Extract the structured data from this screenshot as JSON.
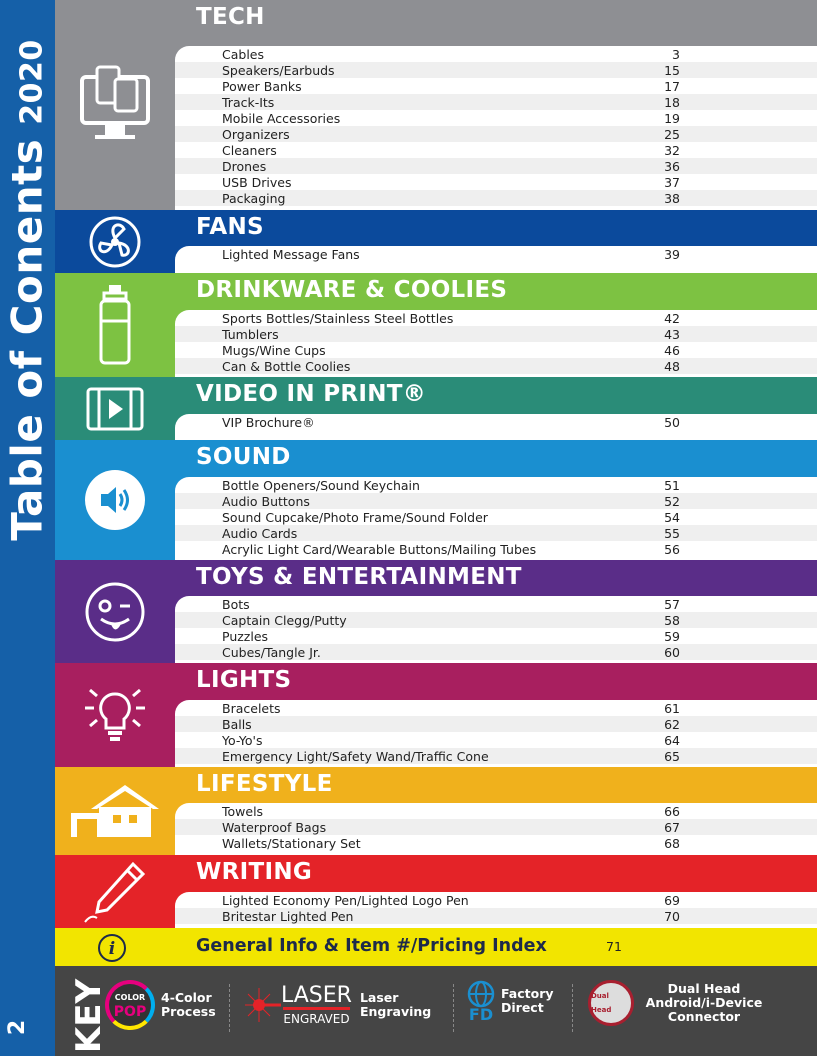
{
  "sidebar": {
    "title": "Table of Conents",
    "year": "2020",
    "page_number": "2"
  },
  "sections": [
    {
      "title": "TECH",
      "color": "#8e8f93",
      "icon": "computer-devices-icon",
      "items": [
        [
          "Cables",
          "3"
        ],
        [
          "Speakers/Earbuds",
          "15"
        ],
        [
          "Power Banks",
          "17"
        ],
        [
          "Track-Its",
          "18"
        ],
        [
          "Mobile Accessories",
          "19"
        ],
        [
          "Organizers",
          "25"
        ],
        [
          "Cleaners",
          "32"
        ],
        [
          "Drones",
          "36"
        ],
        [
          "USB Drives",
          "37"
        ],
        [
          "Packaging",
          "38"
        ]
      ]
    },
    {
      "title": "FANS",
      "color": "#0b4a9c",
      "icon": "fan-icon",
      "items": [
        [
          "Lighted Message Fans",
          "39"
        ]
      ]
    },
    {
      "title": "DRINKWARE & COOLIES",
      "color": "#7dc242",
      "icon": "water-bottle-icon",
      "items": [
        [
          "Sports Bottles/Stainless Steel Bottles",
          "42"
        ],
        [
          "Tumblers",
          "43"
        ],
        [
          "Mugs/Wine Cups",
          "46"
        ],
        [
          "Can & Bottle Coolies",
          "48"
        ]
      ]
    },
    {
      "title": "VIDEO IN PRINT®",
      "color": "#2a8c78",
      "icon": "video-film-icon",
      "items": [
        [
          "VIP Brochure®",
          "50"
        ]
      ]
    },
    {
      "title": "SOUND",
      "color": "#1a8fd0",
      "icon": "speaker-icon",
      "items": [
        [
          "Bottle Openers/Sound Keychain",
          "51"
        ],
        [
          "Audio Buttons",
          "52"
        ],
        [
          "Sound Cupcake/Photo Frame/Sound Folder",
          "54"
        ],
        [
          "Audio Cards",
          "55"
        ],
        [
          "Acrylic Light Card/Wearable Buttons/Mailing Tubes",
          "56"
        ]
      ]
    },
    {
      "title": "TOYS & ENTERTAINMENT",
      "color": "#5a2d88",
      "icon": "winking-emoji-icon",
      "items": [
        [
          "Bots",
          "57"
        ],
        [
          "Captain Clegg/Putty",
          "58"
        ],
        [
          "Puzzles",
          "59"
        ],
        [
          "Cubes/Tangle Jr.",
          "60"
        ]
      ]
    },
    {
      "title": "LIGHTS",
      "color": "#a81f5f",
      "icon": "light-bulb-icon",
      "items": [
        [
          "Bracelets",
          "61"
        ],
        [
          "Balls",
          "62"
        ],
        [
          "Yo-Yo's",
          "64"
        ],
        [
          "Emergency Light/Safety Wand/Traffic Cone",
          "65"
        ]
      ]
    },
    {
      "title": "LIFESTYLE",
      "color": "#f0b11c",
      "icon": "house-icon",
      "items": [
        [
          "Towels",
          "66"
        ],
        [
          "Waterproof Bags",
          "67"
        ],
        [
          "Wallets/Stationary Set",
          "68"
        ]
      ]
    },
    {
      "title": "WRITING",
      "color": "#e42328",
      "icon": "pen-icon",
      "items": [
        [
          "Lighted Economy Pen/Lighted Logo Pen",
          "69"
        ],
        [
          "Britestar Lighted Pen",
          "70"
        ]
      ]
    }
  ],
  "general_info": {
    "title": "General Info & Item #/Pricing Index",
    "page": "71",
    "icon": "info-icon"
  },
  "key": {
    "label": "KEY",
    "items": [
      {
        "logo_text": [
          "COLOR",
          "POP"
        ],
        "label": "4-Color Process"
      },
      {
        "logo_text": [
          "LASER",
          "ENGRAVED"
        ],
        "label": "Laser Engraving"
      },
      {
        "logo_text": [
          "FD"
        ],
        "label": "Factory Direct"
      },
      {
        "logo_text": [
          "Dual Head"
        ],
        "label": "Dual Head Android/i-Device Connector"
      }
    ]
  }
}
